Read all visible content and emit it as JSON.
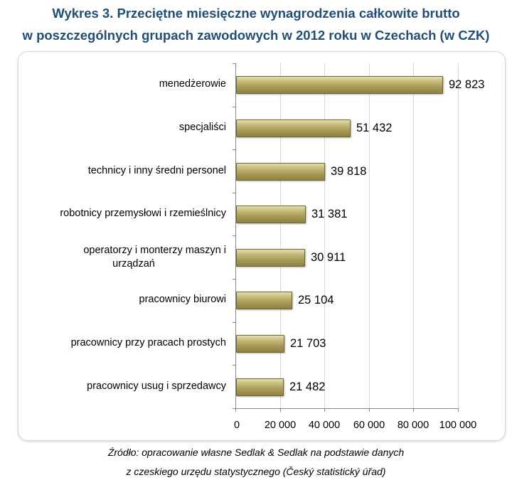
{
  "title": {
    "line1": "Wykres 3. Przeciętne miesięczne wynagrodzenia całkowite brutto",
    "line2": "w poszczególnych grupach zawodowych w 2012 roku w Czechach (w CZK)"
  },
  "source": {
    "line1": "Źródło: opracowanie własne Sedlak & Sedlak na podstawie danych",
    "line2": "z czeskiego urzędu statystycznego (Český statistický úřad)"
  },
  "colors": {
    "bar": "#a89c58",
    "title": "#1f4e79"
  },
  "xaxis": {
    "ticks": [
      "0",
      "20 000",
      "40 000",
      "60 000",
      "80 000",
      "100 000"
    ]
  },
  "chart_data": {
    "type": "bar",
    "orientation": "horizontal",
    "title": "Wykres 3. Przeciętne miesięczne wynagrodzenia całkowite brutto w poszczególnych grupach zawodowych w 2012 roku w Czechach (w CZK)",
    "categories": [
      "menedżerowie",
      "specjaliści",
      "technicy i inny średni personel",
      "robotnicy przemysłowi i rzemieślnicy",
      "operatorzy i monterzy maszyn i urządzań",
      "pracownicy biurowi",
      "pracownicy przy pracach prostych",
      "pracownicy usug i sprzedawcy"
    ],
    "values": [
      92823,
      51432,
      39818,
      31381,
      30911,
      25104,
      21703,
      21482
    ],
    "value_labels": [
      "92 823",
      "51 432",
      "39 818",
      "31 381",
      "30 911",
      "25 104",
      "21 703",
      "21 482"
    ],
    "xlabel": "",
    "ylabel": "",
    "xlim": [
      0,
      100000
    ],
    "xticks": [
      0,
      20000,
      40000,
      60000,
      80000,
      100000
    ],
    "grid": "vertical",
    "legend": "none",
    "source": "Źródło: opracowanie własne Sedlak & Sedlak na podstawie danych z czeskiego urzędu statystycznego (Český statistický úřad)"
  },
  "rows": [
    {
      "cat1": "menedżerowie",
      "cat2": "",
      "label": "92 823"
    },
    {
      "cat1": "specjaliści",
      "cat2": "",
      "label": "51 432"
    },
    {
      "cat1": "technicy i inny średni personel",
      "cat2": "",
      "label": "39 818"
    },
    {
      "cat1": "robotnicy przemysłowi i rzemieślnicy",
      "cat2": "",
      "label": "31 381"
    },
    {
      "cat1": "operatorzy i monterzy maszyn i",
      "cat2": "urządzań",
      "label": "30 911"
    },
    {
      "cat1": "pracownicy biurowi",
      "cat2": "",
      "label": "25 104"
    },
    {
      "cat1": "pracownicy przy pracach prostych",
      "cat2": "",
      "label": "21 703"
    },
    {
      "cat1": "pracownicy usug i sprzedawcy",
      "cat2": "",
      "label": "21 482"
    }
  ]
}
